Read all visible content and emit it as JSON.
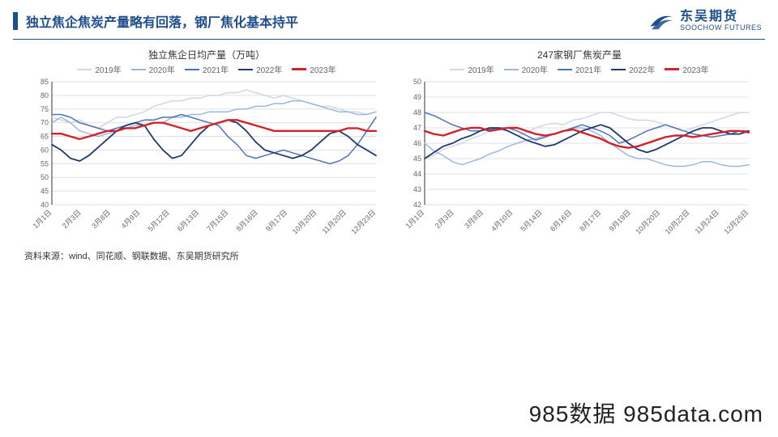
{
  "header": {
    "title": "独立焦企焦炭产量略有回落，钢厂焦化基本持平",
    "logo_cn": "东吴期货",
    "logo_en": "SOOCHOW FUTURES"
  },
  "source": "资料来源：wind、同花顺、钢联数据、东吴期货研究所",
  "watermark": "985数据 985data.com",
  "series_meta": [
    {
      "name": "2019年",
      "color": "#cfd8e6",
      "width": 1.5
    },
    {
      "name": "2020年",
      "color": "#9cb8dc",
      "width": 1.5
    },
    {
      "name": "2021年",
      "color": "#4a74b8",
      "width": 1.5
    },
    {
      "name": "2022年",
      "color": "#1f3a6e",
      "width": 1.8
    },
    {
      "name": "2023年",
      "color": "#d2232a",
      "width": 2.4
    }
  ],
  "chart1": {
    "title": "独立焦企日均产量（万吨）",
    "ylim": [
      40,
      85
    ],
    "ytick_step": 5,
    "x_labels": [
      "1月1日",
      "2月3日",
      "3月8日",
      "4月9日",
      "5月12日",
      "6月13日",
      "7月15日",
      "8月16日",
      "9月17日",
      "10月20日",
      "11月20日",
      "12月23日"
    ],
    "grid_color": "#e0e0e0",
    "axis_color": "#333333",
    "label_fontsize": 9,
    "series": {
      "2019": [
        72,
        71,
        70,
        71,
        69,
        68,
        70,
        72,
        72,
        73,
        74,
        76,
        77,
        78,
        78,
        79,
        79,
        80,
        80,
        81,
        81,
        82,
        81,
        80,
        79,
        80,
        79,
        78,
        77,
        76,
        76,
        75,
        74,
        74,
        73,
        74
      ],
      "2020": [
        70,
        72,
        70,
        67,
        66,
        65,
        66,
        67,
        68,
        69,
        69,
        70,
        70,
        72,
        72,
        73,
        73,
        74,
        74,
        74,
        75,
        75,
        76,
        76,
        77,
        77,
        78,
        78,
        77,
        76,
        75,
        74,
        74,
        73,
        73,
        74
      ],
      "2021": [
        73,
        73,
        72,
        70,
        69,
        68,
        67,
        68,
        69,
        70,
        71,
        71,
        72,
        72,
        73,
        72,
        71,
        70,
        69,
        65,
        62,
        58,
        57,
        58,
        59,
        60,
        59,
        58,
        57,
        56,
        55,
        56,
        58,
        62,
        67,
        72
      ],
      "2022": [
        62,
        60,
        57,
        56,
        58,
        61,
        64,
        67,
        69,
        70,
        69,
        64,
        60,
        57,
        58,
        62,
        66,
        69,
        70,
        71,
        70,
        67,
        63,
        60,
        59,
        58,
        57,
        58,
        60,
        63,
        66,
        67,
        65,
        62,
        60,
        58
      ],
      "2023": [
        66,
        66,
        65,
        64,
        65,
        66,
        67,
        67,
        68,
        68,
        69,
        70,
        70,
        69,
        68,
        67,
        68,
        69,
        70,
        71,
        71,
        70,
        69,
        68,
        67,
        67,
        67,
        67,
        67,
        67,
        67,
        67,
        68,
        68,
        67,
        67
      ]
    }
  },
  "chart2": {
    "title": "247家钢厂焦炭产量",
    "ylim": [
      42,
      50
    ],
    "ytick_step": 1,
    "x_labels": [
      "1月1日",
      "2月3日",
      "3月8日",
      "4月10日",
      "5月14日",
      "6月16日",
      "8月17日",
      "9月19日",
      "10月20日",
      "10月22日",
      "11月24日",
      "12月25日"
    ],
    "grid_color": "#e0e0e0",
    "axis_color": "#333333",
    "label_fontsize": 9,
    "series": {
      "2019": [
        45.0,
        45.2,
        45.6,
        45.8,
        46.0,
        46.3,
        46.5,
        46.8,
        46.9,
        46.8,
        46.5,
        46.7,
        47.0,
        47.2,
        47.3,
        47.2,
        47.5,
        47.6,
        47.8,
        48.0,
        48.0,
        47.8,
        47.6,
        47.5,
        47.5,
        47.4,
        47.2,
        47.0,
        46.8,
        47.0,
        47.2,
        47.4,
        47.6,
        47.8,
        48.0,
        48.0
      ],
      "2020": [
        46.0,
        45.5,
        45.2,
        44.8,
        44.6,
        44.8,
        45.0,
        45.3,
        45.5,
        45.8,
        46.0,
        46.2,
        46.3,
        46.5,
        46.6,
        46.8,
        47.0,
        47.0,
        46.8,
        46.5,
        46.0,
        45.6,
        45.2,
        45.0,
        45.0,
        44.8,
        44.6,
        44.5,
        44.5,
        44.6,
        44.8,
        44.8,
        44.6,
        44.5,
        44.5,
        44.6
      ],
      "2021": [
        48.0,
        47.8,
        47.5,
        47.2,
        47.0,
        46.8,
        46.8,
        46.9,
        47.0,
        47.0,
        46.8,
        46.5,
        46.2,
        46.4,
        46.6,
        46.8,
        47.0,
        47.2,
        47.0,
        46.8,
        46.5,
        46.0,
        46.2,
        46.5,
        46.8,
        47.0,
        47.2,
        47.0,
        46.8,
        46.6,
        46.5,
        46.4,
        46.5,
        46.6,
        46.8,
        46.8
      ],
      "2022": [
        45.0,
        45.4,
        45.8,
        46.0,
        46.3,
        46.5,
        46.8,
        47.0,
        47.0,
        46.8,
        46.5,
        46.2,
        46.0,
        45.8,
        45.9,
        46.2,
        46.5,
        46.8,
        47.0,
        47.2,
        47.0,
        46.5,
        46.0,
        45.6,
        45.4,
        45.6,
        45.9,
        46.2,
        46.5,
        46.8,
        47.0,
        47.0,
        46.8,
        46.6,
        46.6,
        46.8
      ],
      "2023": [
        46.8,
        46.6,
        46.5,
        46.7,
        46.9,
        47.0,
        47.0,
        46.8,
        46.9,
        47.0,
        47.0,
        46.8,
        46.6,
        46.5,
        46.6,
        46.8,
        46.9,
        46.7,
        46.5,
        46.3,
        46.0,
        45.8,
        45.7,
        45.8,
        46.0,
        46.2,
        46.4,
        46.5,
        46.5,
        46.4,
        46.5,
        46.6,
        46.7,
        46.8,
        46.8,
        46.7
      ]
    }
  }
}
